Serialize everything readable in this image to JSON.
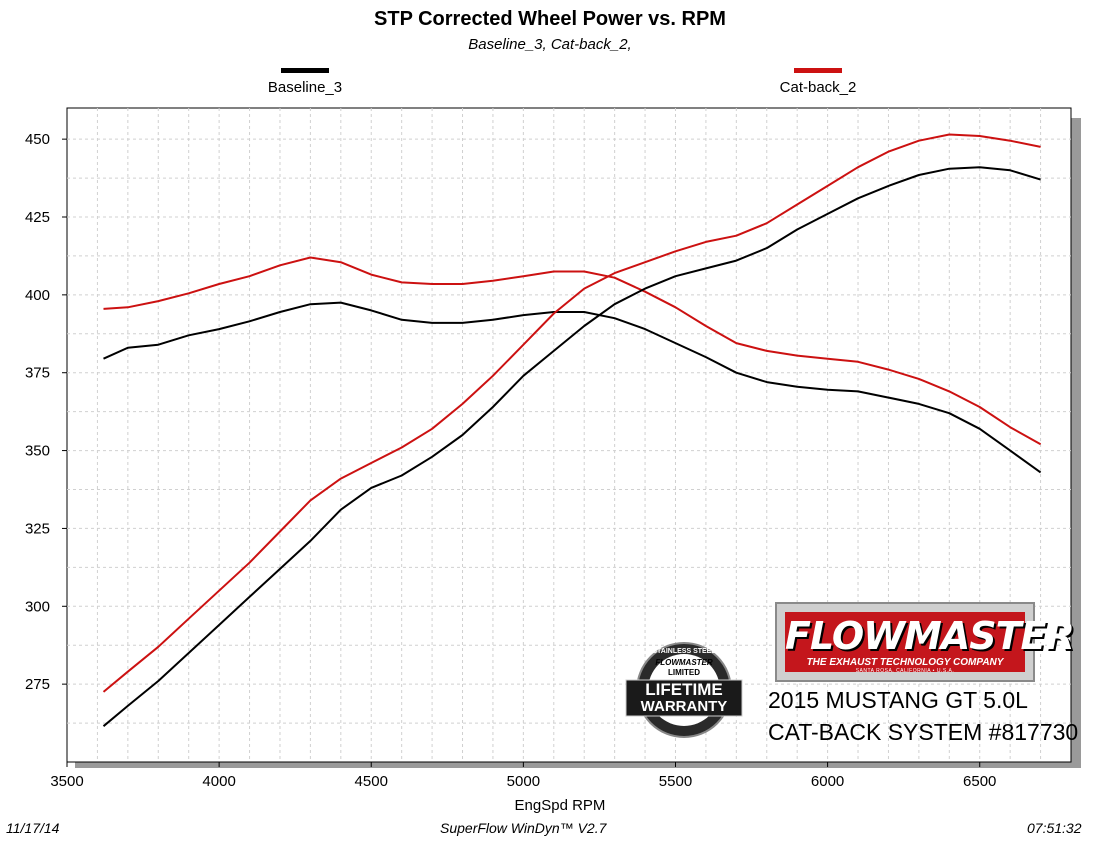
{
  "chart_data": {
    "type": "line",
    "title": "STP Corrected Wheel Power vs. RPM",
    "subtitle": "Baseline_3, Cat-back_2,",
    "xlabel": "EngSpd  RPM",
    "ylabel": "",
    "xlim": [
      3500,
      6800
    ],
    "ylim": [
      250,
      460
    ],
    "xticks": [
      3500,
      4000,
      4500,
      5000,
      5500,
      6000,
      6500
    ],
    "yticks": [
      275,
      300,
      325,
      350,
      375,
      400,
      425,
      450
    ],
    "grid": true,
    "legend_position": "top",
    "power_series": [
      {
        "name": "Baseline_3",
        "color": "#000000",
        "points": [
          [
            3620,
            379.5
          ],
          [
            3700,
            383
          ],
          [
            3800,
            384
          ],
          [
            3900,
            387
          ],
          [
            4000,
            389
          ],
          [
            4100,
            391.5
          ],
          [
            4200,
            394.5
          ],
          [
            4300,
            397
          ],
          [
            4400,
            397.5
          ],
          [
            4500,
            395
          ],
          [
            4600,
            392
          ],
          [
            4700,
            391
          ],
          [
            4800,
            391
          ],
          [
            4900,
            392
          ],
          [
            5000,
            393.5
          ],
          [
            5100,
            394.5
          ],
          [
            5200,
            394.5
          ],
          [
            5300,
            392.5
          ],
          [
            5400,
            389
          ],
          [
            5500,
            384.5
          ],
          [
            5600,
            380
          ],
          [
            5700,
            375
          ],
          [
            5800,
            372
          ],
          [
            5900,
            370.5
          ],
          [
            6000,
            369.5
          ],
          [
            6100,
            369
          ],
          [
            6200,
            367
          ],
          [
            6300,
            365
          ],
          [
            6400,
            362
          ],
          [
            6500,
            357
          ],
          [
            6600,
            350
          ],
          [
            6700,
            343
          ]
        ]
      },
      {
        "name": "Cat-back_2",
        "color": "#cc1111",
        "points": [
          [
            3620,
            395.5
          ],
          [
            3700,
            396
          ],
          [
            3800,
            398
          ],
          [
            3900,
            400.5
          ],
          [
            4000,
            403.5
          ],
          [
            4100,
            406
          ],
          [
            4200,
            409.5
          ],
          [
            4300,
            412
          ],
          [
            4400,
            410.5
          ],
          [
            4500,
            406.5
          ],
          [
            4600,
            404
          ],
          [
            4700,
            403.5
          ],
          [
            4800,
            403.5
          ],
          [
            4900,
            404.5
          ],
          [
            5000,
            406
          ],
          [
            5100,
            407.5
          ],
          [
            5200,
            407.5
          ],
          [
            5300,
            405.5
          ],
          [
            5400,
            401
          ],
          [
            5500,
            396
          ],
          [
            5600,
            390
          ],
          [
            5700,
            384.5
          ],
          [
            5800,
            382
          ],
          [
            5900,
            380.5
          ],
          [
            6000,
            379.5
          ],
          [
            6100,
            378.5
          ],
          [
            6200,
            376
          ],
          [
            6300,
            373
          ],
          [
            6400,
            369
          ],
          [
            6500,
            364
          ],
          [
            6600,
            357.5
          ],
          [
            6700,
            352
          ]
        ]
      }
    ],
    "torque_series": [
      {
        "name": "Baseline_3",
        "color": "#000000",
        "points": [
          [
            3620,
            261.5
          ],
          [
            3700,
            268
          ],
          [
            3800,
            276
          ],
          [
            3900,
            285
          ],
          [
            4000,
            294
          ],
          [
            4100,
            303
          ],
          [
            4200,
            312
          ],
          [
            4300,
            321
          ],
          [
            4400,
            331
          ],
          [
            4500,
            338
          ],
          [
            4600,
            342
          ],
          [
            4700,
            348
          ],
          [
            4800,
            355
          ],
          [
            4900,
            364
          ],
          [
            5000,
            374
          ],
          [
            5100,
            382
          ],
          [
            5200,
            390
          ],
          [
            5300,
            397
          ],
          [
            5400,
            402
          ],
          [
            5500,
            406
          ],
          [
            5600,
            408.5
          ],
          [
            5700,
            411
          ],
          [
            5800,
            415
          ],
          [
            5900,
            421
          ],
          [
            6000,
            426
          ],
          [
            6100,
            431
          ],
          [
            6200,
            435
          ],
          [
            6300,
            438.5
          ],
          [
            6400,
            440.5
          ],
          [
            6500,
            441
          ],
          [
            6600,
            440
          ],
          [
            6700,
            437
          ]
        ]
      },
      {
        "name": "Cat-back_2",
        "color": "#cc1111",
        "points": [
          [
            3620,
            272.5
          ],
          [
            3700,
            279
          ],
          [
            3800,
            287
          ],
          [
            3900,
            296
          ],
          [
            4000,
            305
          ],
          [
            4100,
            314
          ],
          [
            4200,
            324
          ],
          [
            4300,
            334
          ],
          [
            4400,
            341
          ],
          [
            4500,
            346
          ],
          [
            4600,
            351
          ],
          [
            4700,
            357
          ],
          [
            4800,
            365
          ],
          [
            4900,
            374
          ],
          [
            5000,
            384
          ],
          [
            5100,
            394
          ],
          [
            5200,
            402
          ],
          [
            5300,
            407
          ],
          [
            5400,
            410.5
          ],
          [
            5500,
            414
          ],
          [
            5600,
            417
          ],
          [
            5700,
            419
          ],
          [
            5800,
            423
          ],
          [
            5900,
            429
          ],
          [
            6000,
            435
          ],
          [
            6100,
            441
          ],
          [
            6200,
            446
          ],
          [
            6300,
            449.5
          ],
          [
            6400,
            451.5
          ],
          [
            6500,
            451
          ],
          [
            6600,
            449.5
          ],
          [
            6700,
            447.5
          ]
        ]
      }
    ]
  },
  "legend": {
    "items": [
      {
        "label": "Baseline_3",
        "color": "#000000"
      },
      {
        "label": "Cat-back_2",
        "color": "#cc1111"
      }
    ]
  },
  "branding": {
    "brand": "FLOWMASTER",
    "tagline": "THE EXHAUST TECHNOLOGY COMPANY",
    "location": "SANTA ROSA, CALIFORNIA • U.S.A.",
    "caption_line1": "2015 MUSTANG GT 5.0L",
    "caption_line2": "CAT-BACK SYSTEM #817730",
    "badge_top": "STAINLESS STEEL",
    "badge_brand": "FLOWMASTER",
    "badge_limited": "LIMITED",
    "badge_line1": "LIFETIME",
    "badge_line2": "WARRANTY"
  },
  "footer": {
    "date": "11/17/14",
    "software": "SuperFlow WinDyn™ V2.7",
    "time": "07:51:32"
  }
}
